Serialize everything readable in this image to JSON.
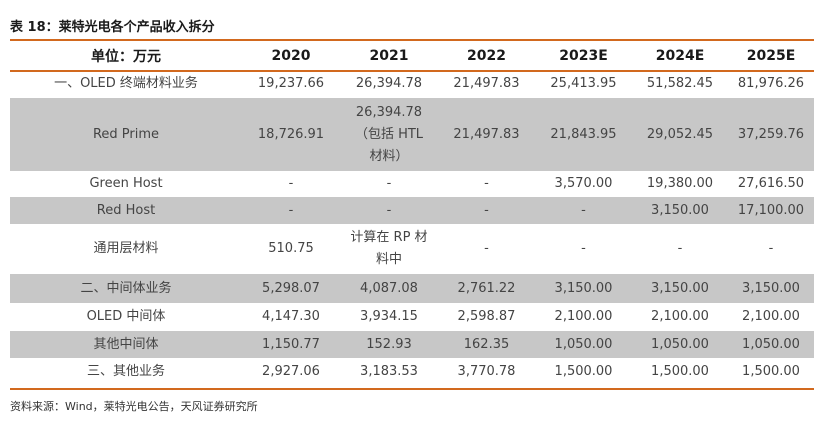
{
  "caption": "表 18：莱特光电各个产品收入拆分",
  "header": [
    "单位：万元",
    "2020",
    "2021",
    "2022",
    "2023E",
    "2024E",
    "2025E"
  ],
  "rows": [
    {
      "label": "一、OLED 终端材料业务",
      "values": [
        "19,237.66",
        "26,394.78",
        "21,497.83",
        "25,413.95",
        "51,582.45",
        "81,976.26"
      ]
    },
    {
      "label": "Red Prime",
      "values": [
        "18,726.91",
        "26,394.78",
        "21,497.83",
        "21,843.95",
        "29,052.45",
        "37,259.76"
      ],
      "note_2021": [
        "（包括 HTL",
        "材料）"
      ]
    },
    {
      "label": "Green Host",
      "values": [
        "-",
        "-",
        "-",
        "3,570.00",
        "19,380.00",
        "27,616.50"
      ]
    },
    {
      "label": "Red Host",
      "values": [
        "-",
        "-",
        "-",
        "-",
        "3,150.00",
        "17,100.00"
      ]
    },
    {
      "label": "通用层材料",
      "values": [
        "510.75",
        "计算在 RP 材",
        "-",
        "-",
        "-",
        "-"
      ],
      "note_2021": [
        "料中"
      ]
    },
    {
      "label": "二、中间体业务",
      "values": [
        "5,298.07",
        "4,087.08",
        "2,761.22",
        "3,150.00",
        "3,150.00",
        "3,150.00"
      ]
    },
    {
      "label": "OLED 中间体",
      "values": [
        "4,147.30",
        "3,934.15",
        "2,598.87",
        "2,100.00",
        "2,100.00",
        "2,100.00"
      ]
    },
    {
      "label": "其他中间体",
      "values": [
        "1,150.77",
        "152.93",
        "162.35",
        "1,050.00",
        "1,050.00",
        "1,050.00"
      ]
    },
    {
      "label": "三、其他业务",
      "values": [
        "2,927.06",
        "3,183.53",
        "3,770.78",
        "1,500.00",
        "1,500.00",
        "1,500.00"
      ]
    }
  ],
  "source": "资料来源：Wind，莱特光电公告，天风证券研究所",
  "colors": {
    "accent_rule": "#d2691e",
    "shaded_row": "#c7c7c7"
  }
}
